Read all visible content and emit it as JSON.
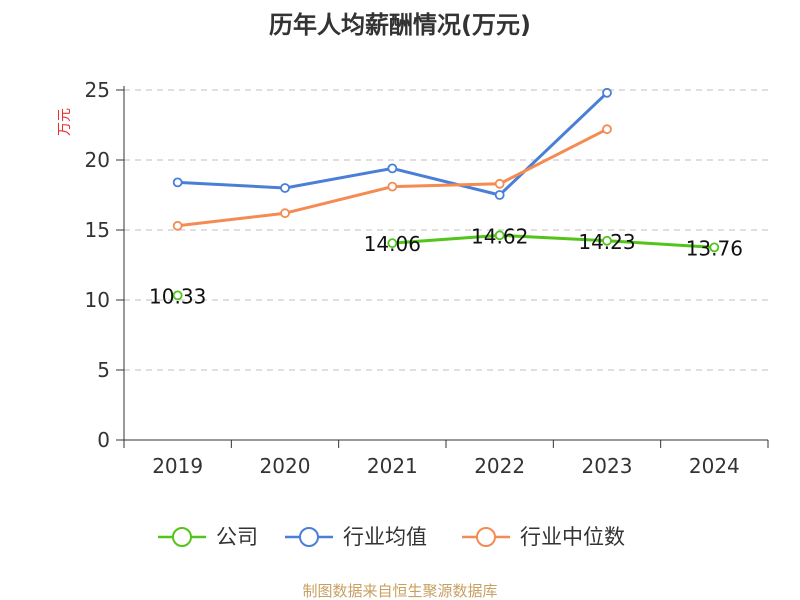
{
  "chart_data": {
    "type": "line",
    "title": "历年人均薪酬情况(万元)",
    "ylabel": "万元",
    "xlabel": "",
    "categories": [
      "2019",
      "2020",
      "2021",
      "2022",
      "2023",
      "2024"
    ],
    "ylim": [
      0,
      25
    ],
    "yticks": [
      0,
      5,
      10,
      15,
      20,
      25
    ],
    "grid": true,
    "legend": "bottom",
    "series": [
      {
        "name": "公司",
        "color": "#52c41a",
        "values": [
          10.33,
          null,
          14.06,
          14.62,
          14.23,
          13.76
        ],
        "labels": [
          "10.33",
          "",
          "14.06",
          "14.62",
          "14.23",
          "13.76"
        ]
      },
      {
        "name": "行业均值",
        "color": "#4a7fd8",
        "values": [
          18.4,
          18.0,
          19.4,
          17.5,
          24.8,
          null
        ],
        "labels": []
      },
      {
        "name": "行业中位数",
        "color": "#f48b52",
        "values": [
          15.3,
          16.2,
          18.1,
          18.3,
          22.2,
          null
        ],
        "labels": []
      }
    ]
  },
  "source_note": "制图数据来自恒生聚源数据库",
  "colors": {
    "ylabel": "#e8302e",
    "source": "#c8a060",
    "grid": "#cccccc",
    "axis": "#333333"
  }
}
